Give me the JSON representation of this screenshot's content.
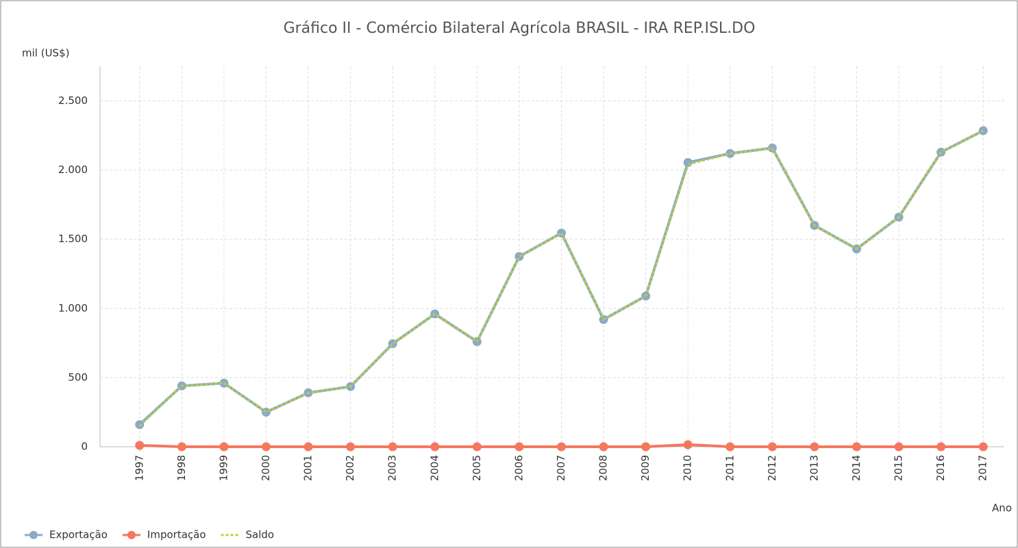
{
  "chart_data": {
    "type": "line",
    "title": "Gráfico II - Comércio Bilateral Agrícola BRASIL - IRA REP.ISL.DO",
    "y_label": "mil (US$)",
    "x_label": "Ano",
    "categories": [
      "1997",
      "1998",
      "1999",
      "2000",
      "2001",
      "2002",
      "2003",
      "2004",
      "2005",
      "2006",
      "2007",
      "2008",
      "2009",
      "2010",
      "2011",
      "2012",
      "2013",
      "2014",
      "2015",
      "2016",
      "2017"
    ],
    "series": [
      {
        "name": "Exportação",
        "color": "#8ea8c9",
        "marker": true,
        "dashed": false,
        "values": [
          160,
          440,
          460,
          250,
          390,
          435,
          745,
          960,
          760,
          1375,
          1545,
          920,
          1090,
          2055,
          2120,
          2160,
          1600,
          1430,
          1660,
          2130,
          2285
        ]
      },
      {
        "name": "Importação",
        "color": "#f5775f",
        "marker": true,
        "dashed": false,
        "values": [
          10,
          0,
          0,
          0,
          0,
          0,
          0,
          0,
          0,
          0,
          0,
          0,
          0,
          15,
          0,
          0,
          0,
          0,
          0,
          0,
          0
        ]
      },
      {
        "name": "Saldo",
        "color": "#b5d334",
        "marker": false,
        "dashed": true,
        "values": [
          150,
          440,
          460,
          250,
          390,
          435,
          745,
          960,
          760,
          1375,
          1545,
          920,
          1090,
          2040,
          2120,
          2160,
          1600,
          1430,
          1660,
          2130,
          2285
        ]
      }
    ],
    "ylim": [
      0,
      2750
    ],
    "yticks": [
      0,
      500,
      {
        "value": 1000,
        "label": "1.000"
      },
      {
        "value": 1500,
        "label": "1.500"
      },
      {
        "value": 2000,
        "label": "2.000"
      },
      {
        "value": 2500,
        "label": "2.500"
      }
    ],
    "grid": true
  }
}
